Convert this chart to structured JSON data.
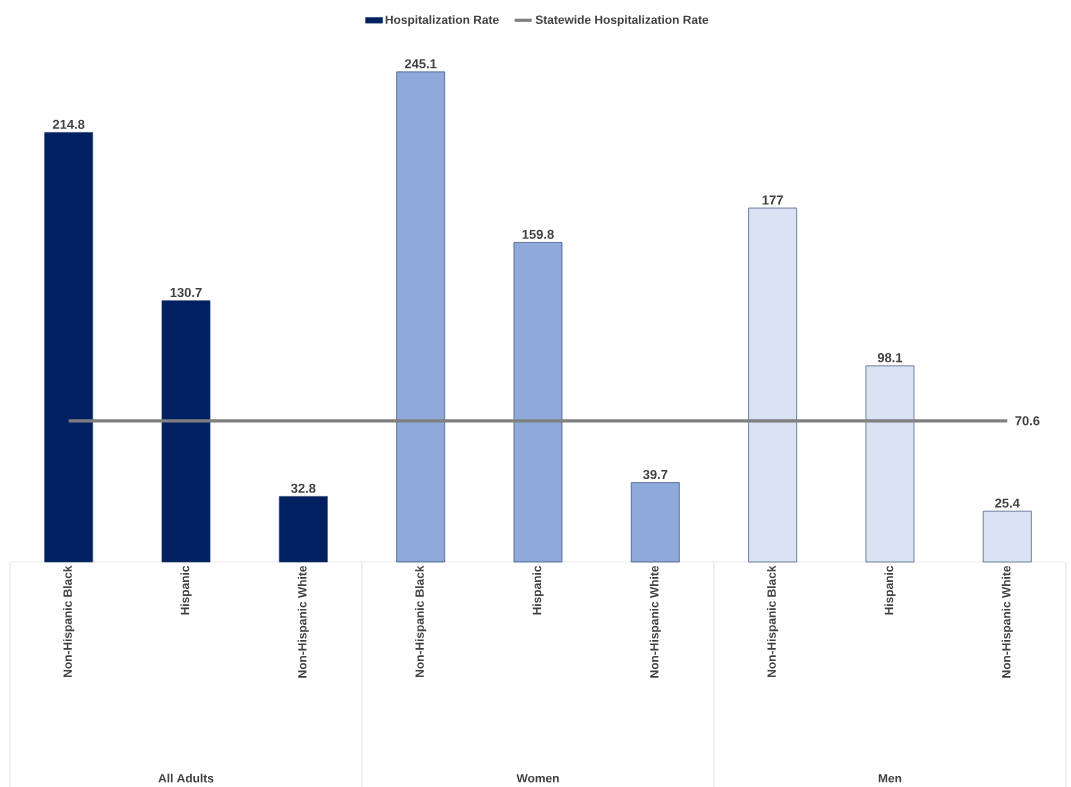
{
  "chart_data": {
    "type": "bar",
    "legend": "top",
    "categories": [
      "Non-Hispanic Black",
      "Hispanic",
      "Non-Hispanic White",
      "Non-Hispanic Black",
      "Hispanic",
      "Non-Hispanic White",
      "Non-Hispanic Black",
      "Hispanic",
      "Non-Hispanic White"
    ],
    "annotations": [
      "All Adults",
      "Women",
      "Men"
    ],
    "series": [
      {
        "name": "Hospitalization Rate",
        "color": "#002060",
        "colors": [
          "#002060",
          "#002060",
          "#002060",
          "#8eaadb",
          "#8eaadb",
          "#8eaadb",
          "#dae3f3",
          "#dae3f3",
          "#dae3f3"
        ],
        "values": [
          214.8,
          130.7,
          32.8,
          245.1,
          159.8,
          39.7,
          177,
          98.1,
          25.4
        ],
        "value_labels": [
          "214.8",
          "130.7",
          "32.8",
          "245.1",
          "159.8",
          "39.7",
          "177",
          "98.1",
          "25.4"
        ]
      },
      {
        "name": "Statewide Hospitalization Rate",
        "type": "line",
        "color": "#7f7f7f",
        "values": [
          70.6,
          70.6,
          70.6,
          70.6,
          70.6,
          70.6,
          70.6,
          70.6,
          70.6
        ],
        "value_labels": [
          null,
          null,
          null,
          null,
          null,
          null,
          null,
          null,
          "70.6"
        ]
      }
    ]
  }
}
